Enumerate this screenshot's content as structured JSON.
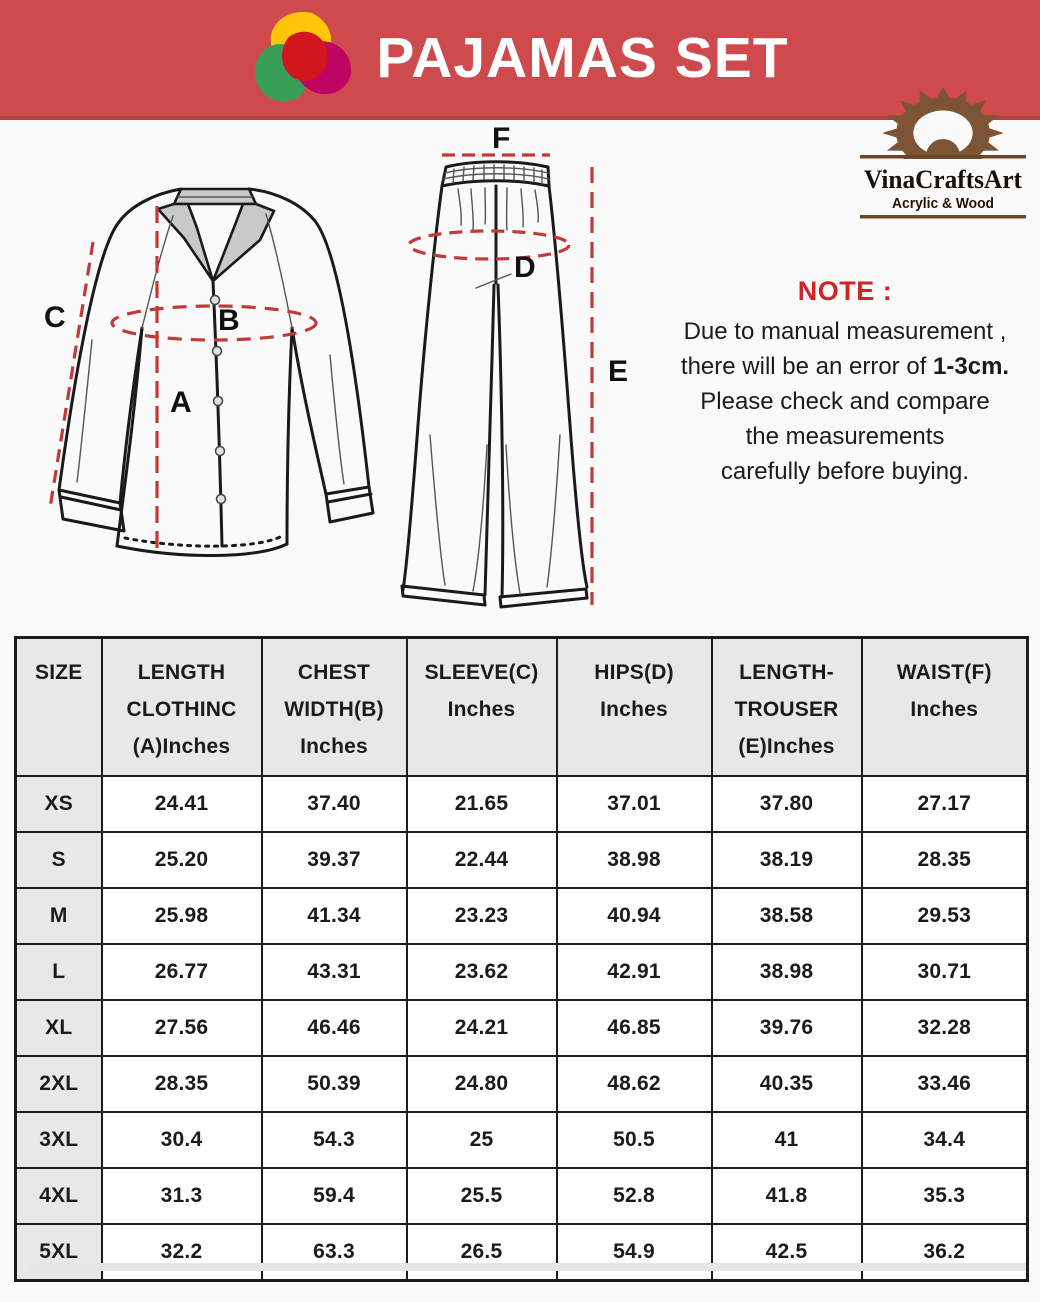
{
  "banner": {
    "title": "PAJAMAS SET"
  },
  "brand": {
    "name": "VinaCraftsArt",
    "tagline": "Acrylic & Wood"
  },
  "diagram": {
    "label_a": "A",
    "label_b": "B",
    "label_c": "C",
    "label_d": "D",
    "label_e": "E",
    "label_f": "F"
  },
  "note": {
    "heading": "NOTE :",
    "line1": "Due to manual measurement ,",
    "line2_prefix": "there will be an error of ",
    "line2_bold": "1-3cm.",
    "line3": "Please check and compare",
    "line4": "the measurements",
    "line5": "carefully before buying."
  },
  "table": {
    "columns": [
      {
        "label": "SIZE"
      },
      {
        "label": "LENGTH\nCLOTHINC\n(A)Inches"
      },
      {
        "label": "CHEST\nWIDTH(B)\nInches"
      },
      {
        "label": "SLEEVE(C)\nInches"
      },
      {
        "label": "HIPS(D)\nInches"
      },
      {
        "label": "LENGTH-\nTROUSER\n(E)Inches"
      },
      {
        "label": "WAIST(F)\nInches"
      }
    ],
    "rows": [
      {
        "size": "XS",
        "values": [
          "24.41",
          "37.40",
          "21.65",
          "37.01",
          "37.80",
          "27.17"
        ]
      },
      {
        "size": "S",
        "values": [
          "25.20",
          "39.37",
          "22.44",
          "38.98",
          "38.19",
          "28.35"
        ]
      },
      {
        "size": "M",
        "values": [
          "25.98",
          "41.34",
          "23.23",
          "40.94",
          "38.58",
          "29.53"
        ]
      },
      {
        "size": "L",
        "values": [
          "26.77",
          "43.31",
          "23.62",
          "42.91",
          "38.98",
          "30.71"
        ]
      },
      {
        "size": "XL",
        "values": [
          "27.56",
          "46.46",
          "24.21",
          "46.85",
          "39.76",
          "32.28"
        ]
      },
      {
        "size": "2XL",
        "values": [
          "28.35",
          "50.39",
          "24.80",
          "48.62",
          "40.35",
          "33.46"
        ]
      },
      {
        "size": "3XL",
        "values": [
          "30.4",
          "54.3",
          "25",
          "50.5",
          "41",
          "34.4"
        ]
      },
      {
        "size": "4XL",
        "values": [
          "31.3",
          "59.4",
          "25.5",
          "52.8",
          "41.8",
          "35.3"
        ]
      },
      {
        "size": "5XL",
        "values": [
          "32.2",
          "63.3",
          "26.5",
          "54.9",
          "42.5",
          "36.2"
        ]
      }
    ]
  },
  "colors": {
    "banner_red": "#ce4a4c",
    "banner_edge": "#b23d3f",
    "note_red": "#d02527",
    "measure_red": "#c23a38",
    "header_gray": "#e8e8e8",
    "logo_brown": "#7d5434"
  }
}
